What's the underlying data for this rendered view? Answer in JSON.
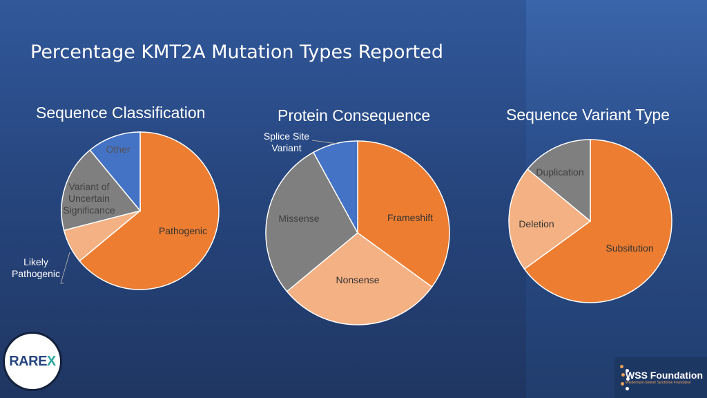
{
  "slide": {
    "title": "Percentage KMT2A Mutation Types Reported",
    "colors": {
      "background": "#27467f",
      "orange": "#ed7d31",
      "light_orange": "#f4b183",
      "gray": "#7f7f7f",
      "blue": "#4472c4"
    }
  },
  "chart_data": [
    {
      "type": "pie",
      "title": "Sequence Classification",
      "slices": [
        {
          "label": "Pathogenic",
          "value": 64,
          "color": "#ed7d31"
        },
        {
          "label": "Likely Pathogenic",
          "value": 7,
          "color": "#f4b183"
        },
        {
          "label": "Variant of Uncertain Significance",
          "value": 18,
          "color": "#7f7f7f"
        },
        {
          "label": "Other",
          "value": 11,
          "color": "#4472c4"
        }
      ]
    },
    {
      "type": "pie",
      "title": "Protein Consequence",
      "slices": [
        {
          "label": "Frameshift",
          "value": 35,
          "color": "#ed7d31"
        },
        {
          "label": "Nonsense",
          "value": 29,
          "color": "#f4b183"
        },
        {
          "label": "Missense",
          "value": 28,
          "color": "#7f7f7f"
        },
        {
          "label": "Splice Site Variant",
          "value": 8,
          "color": "#4472c4"
        }
      ]
    },
    {
      "type": "pie",
      "title": "Sequence Variant Type",
      "slices": [
        {
          "label": "Subsitution",
          "value": 65,
          "color": "#ed7d31"
        },
        {
          "label": "Deletion",
          "value": 21,
          "color": "#f4b183"
        },
        {
          "label": "Duplication",
          "value": 14,
          "color": "#7f7f7f"
        }
      ]
    }
  ],
  "logos": {
    "rarex": "RAREX",
    "rarex_icon": "rarex-logo-icon",
    "wss_name": "WSS Foundation",
    "wss_tagline": "Wiedemann-Steiner Syndrome Foundation",
    "wss_icon": "dna-helix-icon"
  }
}
